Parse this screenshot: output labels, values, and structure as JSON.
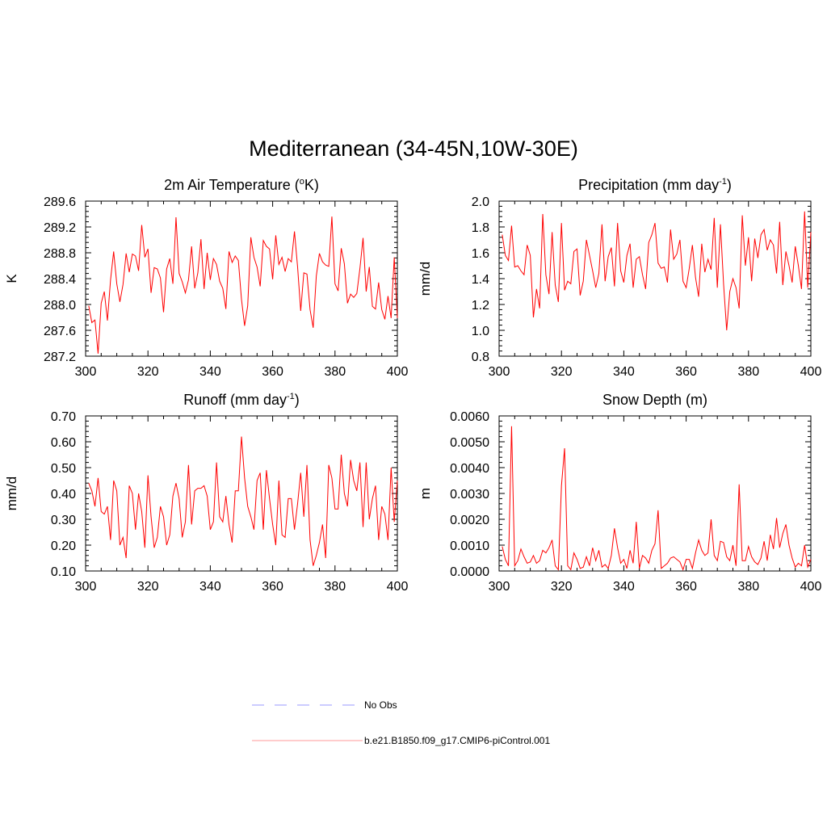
{
  "title": "Mediterranean (34-45N,10W-30E)",
  "legend": {
    "items": [
      {
        "label": "No Obs",
        "color": "#9999ff",
        "dash": true
      },
      {
        "label": "b.e21.B1850.f09_g17.CMIP6-piControl.001",
        "color": "#ff9999",
        "dash": false
      }
    ]
  },
  "chart_data": [
    {
      "type": "line",
      "title": "2m Air Temperature (°K)",
      "title_parts": {
        "pre": "2m Air Temperature (",
        "sup": "o",
        "post": "K)"
      },
      "ylabel": "K",
      "xlim": [
        300,
        400
      ],
      "ylim": [
        287.2,
        289.6
      ],
      "xticks": [
        "300",
        "320",
        "340",
        "360",
        "380",
        "400"
      ],
      "yticks": [
        "287.2",
        "287.6",
        "288.0",
        "288.4",
        "288.8",
        "289.2",
        "289.6"
      ],
      "x_start": 301,
      "x_step": 1,
      "color": "#ff0000",
      "values": [
        287.98,
        287.72,
        287.76,
        287.24,
        288.02,
        288.2,
        287.75,
        288.38,
        288.82,
        288.32,
        288.04,
        288.31,
        288.79,
        288.5,
        288.78,
        288.75,
        288.52,
        289.23,
        288.73,
        288.86,
        288.18,
        288.57,
        288.55,
        288.41,
        287.88,
        288.55,
        288.71,
        288.32,
        289.35,
        288.48,
        288.35,
        288.18,
        288.38,
        288.9,
        288.25,
        288.49,
        289.01,
        288.24,
        288.8,
        288.38,
        288.71,
        288.62,
        288.36,
        288.25,
        287.93,
        288.82,
        288.65,
        288.75,
        288.68,
        288.08,
        287.67,
        287.98,
        289.04,
        288.73,
        288.58,
        288.28,
        288.99,
        288.9,
        288.86,
        288.39,
        289.07,
        288.62,
        288.73,
        288.51,
        288.71,
        288.66,
        289.13,
        288.58,
        287.9,
        288.49,
        288.47,
        287.92,
        287.64,
        288.44,
        288.79,
        288.66,
        288.61,
        288.59,
        289.36,
        288.32,
        288.21,
        288.87,
        288.63,
        288.02,
        288.16,
        288.11,
        288.17,
        288.56,
        289.03,
        288.2,
        288.58,
        287.97,
        287.93,
        288.34,
        287.92,
        287.77,
        288.13,
        287.79,
        288.73,
        287.79
      ]
    },
    {
      "type": "line",
      "title": "Precipitation (mm day⁻¹)",
      "title_parts": {
        "pre": "Precipitation (mm day",
        "sup": "-1",
        "post": ")"
      },
      "ylabel": "mm/d",
      "xlim": [
        300,
        400
      ],
      "ylim": [
        0.8,
        2.0
      ],
      "xticks": [
        "300",
        "320",
        "340",
        "360",
        "380",
        "400"
      ],
      "yticks": [
        "0.8",
        "1.0",
        "1.2",
        "1.4",
        "1.6",
        "1.8",
        "2.0"
      ],
      "x_start": 301,
      "x_step": 1,
      "color": "#ff0000",
      "values": [
        1.74,
        1.58,
        1.54,
        1.81,
        1.49,
        1.5,
        1.46,
        1.43,
        1.66,
        1.58,
        1.1,
        1.32,
        1.17,
        1.9,
        1.43,
        1.28,
        1.76,
        1.35,
        1.22,
        1.83,
        1.31,
        1.38,
        1.36,
        1.61,
        1.63,
        1.27,
        1.38,
        1.7,
        1.58,
        1.46,
        1.33,
        1.44,
        1.82,
        1.38,
        1.57,
        1.64,
        1.34,
        1.83,
        1.46,
        1.37,
        1.58,
        1.67,
        1.33,
        1.55,
        1.57,
        1.43,
        1.32,
        1.68,
        1.74,
        1.83,
        1.52,
        1.48,
        1.49,
        1.37,
        1.78,
        1.55,
        1.59,
        1.7,
        1.38,
        1.33,
        1.48,
        1.66,
        1.41,
        1.26,
        1.67,
        1.45,
        1.55,
        1.47,
        1.87,
        1.33,
        1.82,
        1.36,
        1.0,
        1.3,
        1.4,
        1.33,
        1.17,
        1.89,
        1.5,
        1.72,
        1.38,
        1.71,
        1.56,
        1.74,
        1.78,
        1.62,
        1.7,
        1.66,
        1.44,
        1.84,
        1.35,
        1.61,
        1.5,
        1.37,
        1.65,
        1.5,
        1.32,
        1.92,
        1.33,
        1.76
      ]
    },
    {
      "type": "line",
      "title": "Runoff (mm day⁻¹)",
      "title_parts": {
        "pre": "Runoff (mm day",
        "sup": "-1",
        "post": ")"
      },
      "ylabel": "mm/d",
      "xlim": [
        300,
        400
      ],
      "ylim": [
        0.1,
        0.7
      ],
      "xticks": [
        "300",
        "320",
        "340",
        "360",
        "380",
        "400"
      ],
      "yticks": [
        "0.10",
        "0.20",
        "0.30",
        "0.40",
        "0.50",
        "0.60",
        "0.70"
      ],
      "x_start": 301,
      "x_step": 1,
      "color": "#ff0000",
      "values": [
        0.44,
        0.41,
        0.35,
        0.46,
        0.33,
        0.32,
        0.35,
        0.22,
        0.45,
        0.41,
        0.2,
        0.23,
        0.15,
        0.43,
        0.4,
        0.26,
        0.4,
        0.33,
        0.19,
        0.47,
        0.31,
        0.19,
        0.23,
        0.35,
        0.31,
        0.2,
        0.24,
        0.39,
        0.44,
        0.38,
        0.23,
        0.29,
        0.51,
        0.28,
        0.41,
        0.42,
        0.42,
        0.43,
        0.39,
        0.26,
        0.29,
        0.52,
        0.31,
        0.29,
        0.39,
        0.28,
        0.21,
        0.41,
        0.41,
        0.62,
        0.46,
        0.35,
        0.31,
        0.26,
        0.45,
        0.48,
        0.26,
        0.49,
        0.38,
        0.28,
        0.2,
        0.45,
        0.24,
        0.23,
        0.38,
        0.38,
        0.26,
        0.36,
        0.48,
        0.31,
        0.51,
        0.22,
        0.12,
        0.16,
        0.21,
        0.28,
        0.15,
        0.51,
        0.46,
        0.34,
        0.34,
        0.55,
        0.4,
        0.35,
        0.53,
        0.45,
        0.41,
        0.52,
        0.27,
        0.52,
        0.3,
        0.38,
        0.43,
        0.22,
        0.35,
        0.32,
        0.22,
        0.5,
        0.29,
        0.45
      ]
    },
    {
      "type": "line",
      "title": "Snow Depth (m)",
      "ylabel": "m",
      "xlim": [
        300,
        400
      ],
      "ylim": [
        0.0,
        0.006
      ],
      "xticks": [
        "300",
        "320",
        "340",
        "360",
        "380",
        "400"
      ],
      "yticks": [
        "0.0000",
        "0.0010",
        "0.0020",
        "0.0030",
        "0.0040",
        "0.0050",
        "0.0060"
      ],
      "x_start": 301,
      "x_step": 1,
      "color": "#ff0000",
      "values": [
        0.00095,
        0.00045,
        0.0002,
        0.0056,
        0.0002,
        0.0004,
        0.00085,
        0.00055,
        0.0003,
        0.00035,
        0.0006,
        0.0003,
        0.0004,
        0.0008,
        0.0007,
        0.0009,
        0.0012,
        0.0002,
        5e-05,
        0.0033,
        0.00475,
        0.0002,
        5e-05,
        0.0007,
        0.00045,
        0.0001,
        0.00015,
        0.00055,
        0.0002,
        0.0009,
        0.0004,
        0.0008,
        0.00015,
        0.00025,
        0.0001,
        0.0006,
        0.00165,
        0.0009,
        0.0003,
        0.00045,
        0.0001,
        0.0008,
        0.0003,
        0.0019,
        0.0001,
        0.0006,
        0.0005,
        0.0003,
        0.0008,
        0.00105,
        0.00235,
        0.0001,
        0.0002,
        0.0003,
        0.0005,
        0.00055,
        0.00045,
        0.00035,
        5e-05,
        0.00045,
        0.00045,
        0.0001,
        0.0007,
        0.0012,
        0.0008,
        0.0006,
        0.0007,
        0.002,
        0.0006,
        0.0004,
        0.00115,
        0.0011,
        0.00055,
        0.0004,
        0.001,
        0.0002,
        0.00335,
        0.0004,
        0.0004,
        0.00095,
        0.00055,
        0.00035,
        0.00025,
        0.0005,
        0.00115,
        0.0004,
        0.0014,
        0.00085,
        0.00205,
        0.0009,
        0.00145,
        0.0018,
        0.001,
        0.0005,
        0.00015,
        0.0003,
        0.0002,
        0.001,
        0.00015,
        0.00045
      ]
    }
  ]
}
